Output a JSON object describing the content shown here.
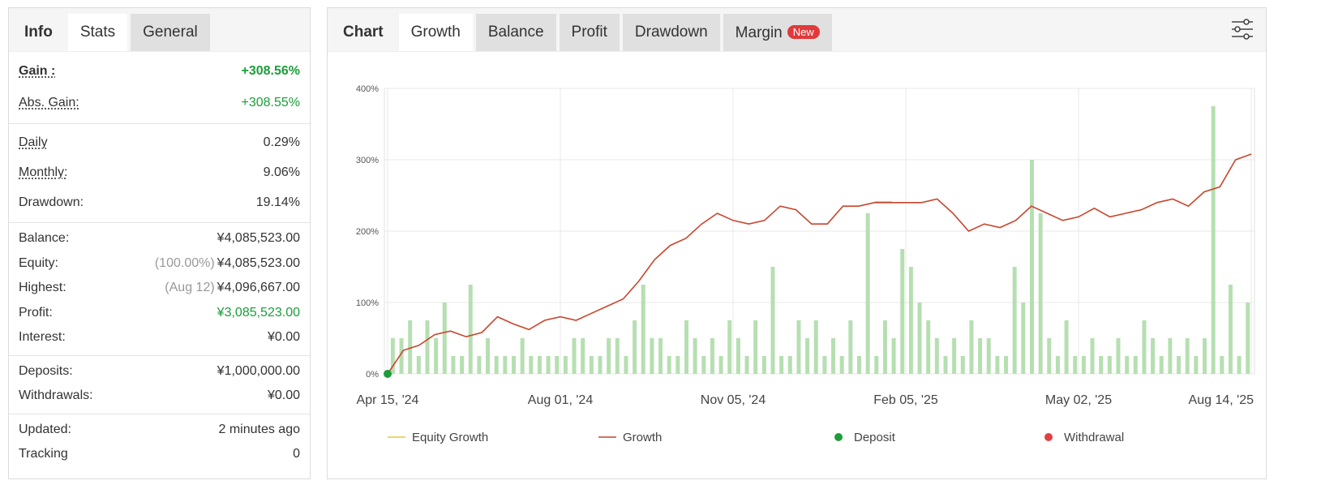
{
  "left_panel": {
    "tabs": [
      "Info",
      "Stats",
      "General"
    ],
    "sections": [
      [
        {
          "label": "Gain :",
          "value": "+308.56%",
          "color": "#1a9e3a"
        },
        {
          "label": "Abs. Gain:",
          "value": "+308.55%",
          "color": "#1a9e3a"
        }
      ],
      [
        {
          "label": "Daily",
          "value": "0.29%"
        },
        {
          "label": "Monthly:",
          "value": "9.06%"
        },
        {
          "label": "Drawdown:",
          "value": "19.14%"
        }
      ],
      [
        {
          "label": "Balance:",
          "value": "¥4,085,523.00"
        },
        {
          "label": "Equity:",
          "note": "(100.00%)",
          "value": "¥4,085,523.00"
        },
        {
          "label": "Highest:",
          "note": "(Aug 12)",
          "value": "¥4,096,667.00"
        },
        {
          "label": "Profit:",
          "value": "¥3,085,523.00",
          "color": "#1a9e3a"
        },
        {
          "label": "Interest:",
          "value": "¥0.00"
        }
      ],
      [
        {
          "label": "Deposits:",
          "value": "¥1,000,000.00"
        },
        {
          "label": "Withdrawals:",
          "value": "¥0.00"
        }
      ],
      [
        {
          "label": "Updated:",
          "value": "2 minutes ago"
        },
        {
          "label": "Tracking",
          "value": "0"
        }
      ]
    ]
  },
  "chart_panel": {
    "tabs": [
      "Chart",
      "Growth",
      "Balance",
      "Profit",
      "Drawdown",
      "Margin"
    ],
    "badge": "New"
  },
  "chart_data": {
    "type": "mixed",
    "xlim": [
      0,
      5
    ],
    "xticks": [
      {
        "value": 0,
        "label": "Apr 15, '24"
      },
      {
        "value": 1,
        "label": "Aug 01, '24"
      },
      {
        "value": 2,
        "label": "Nov 05, '24"
      },
      {
        "value": 3,
        "label": "Feb 05, '25"
      },
      {
        "value": 4,
        "label": "May 02, '25"
      },
      {
        "value": 5,
        "label": "Aug 14, '25"
      }
    ],
    "ylim": [
      0,
      400
    ],
    "yticks": [
      {
        "value": 0,
        "label": "0%"
      },
      {
        "value": 100,
        "label": "100%"
      },
      {
        "value": 200,
        "label": "200%"
      },
      {
        "value": 300,
        "label": "300%"
      },
      {
        "value": 400,
        "label": "400%"
      }
    ],
    "grid": true,
    "bars": {
      "color": "#b6dfb1",
      "values": [
        50,
        50,
        75,
        25,
        75,
        50,
        100,
        25,
        25,
        125,
        25,
        50,
        25,
        25,
        25,
        50,
        25,
        25,
        25,
        25,
        25,
        50,
        50,
        25,
        25,
        50,
        50,
        25,
        75,
        125,
        50,
        50,
        25,
        25,
        75,
        50,
        25,
        50,
        25,
        75,
        50,
        25,
        75,
        25,
        150,
        25,
        25,
        75,
        50,
        75,
        25,
        50,
        25,
        75,
        25,
        225,
        25,
        75,
        50,
        175,
        150,
        100,
        75,
        50,
        25,
        50,
        25,
        75,
        50,
        50,
        25,
        25,
        150,
        100,
        300,
        225,
        50,
        25,
        75,
        25,
        25,
        50,
        25,
        25,
        50,
        25,
        25,
        75,
        50,
        25,
        50,
        25,
        50,
        25,
        50,
        375,
        25,
        125,
        25,
        100
      ]
    },
    "series": [
      {
        "name": "Equity Growth",
        "type": "line",
        "color": "#e8c547",
        "x": [
          2.82,
          2.92
        ],
        "values": [
          241,
          241
        ]
      },
      {
        "name": "Growth",
        "type": "line",
        "color": "#c8452c",
        "values": [
          0,
          33,
          40,
          55,
          60,
          52,
          58,
          80,
          70,
          62,
          75,
          80,
          75,
          85,
          95,
          105,
          130,
          160,
          180,
          190,
          210,
          225,
          215,
          210,
          215,
          235,
          230,
          210,
          210,
          235,
          235,
          240,
          240,
          240,
          240,
          245,
          225,
          200,
          210,
          205,
          215,
          235,
          225,
          215,
          220,
          232,
          220,
          225,
          230,
          240,
          245,
          235,
          255,
          262,
          300,
          308
        ]
      },
      {
        "name": "Deposit",
        "type": "dot",
        "color": "#1a9e3a",
        "x": [
          0
        ],
        "values": [
          0
        ]
      },
      {
        "name": "Withdrawal",
        "type": "dot",
        "color": "#e04040",
        "x": [],
        "values": []
      }
    ]
  }
}
